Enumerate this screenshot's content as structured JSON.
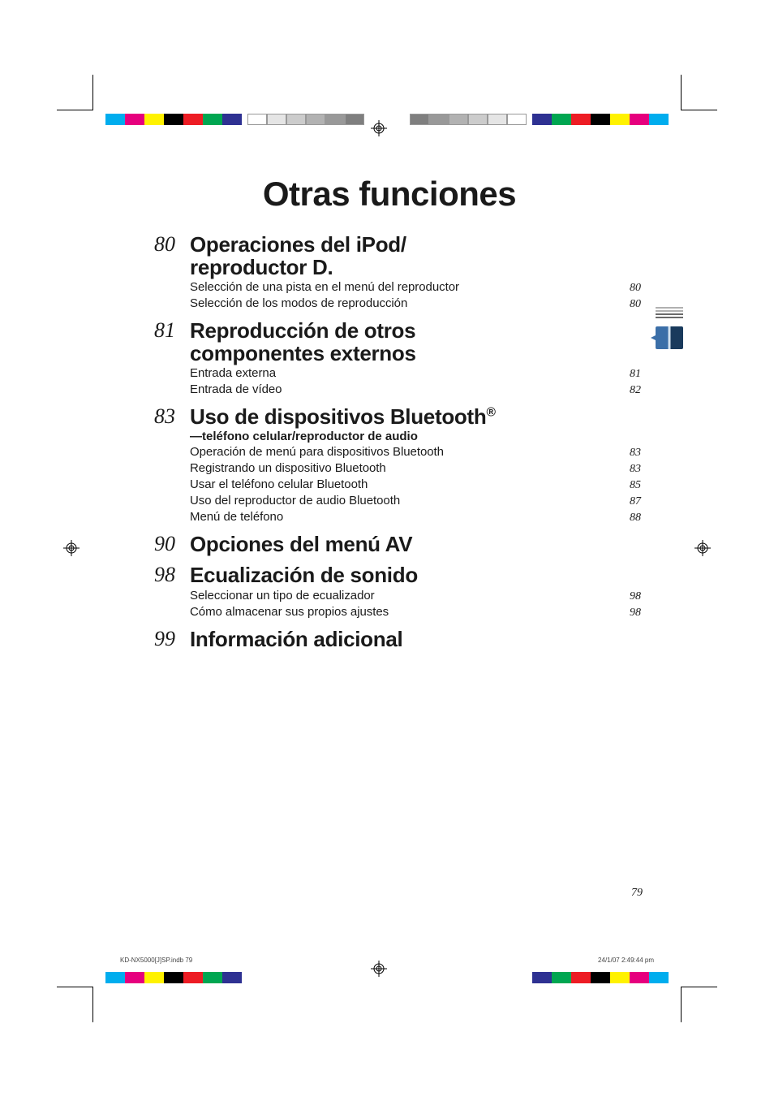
{
  "title": "Otras funciones",
  "sections": [
    {
      "num": "80",
      "title": "Operaciones del iPod/reproductor D.",
      "subtitle": null,
      "items": [
        {
          "label": "Selección de una pista en el menú del reproductor",
          "page": "80"
        },
        {
          "label": "Selección de los modos de reproducción",
          "page": "80"
        }
      ]
    },
    {
      "num": "81",
      "title": "Reproducción de otros componentes externos",
      "subtitle": null,
      "items": [
        {
          "label": "Entrada externa",
          "page": "81"
        },
        {
          "label": "Entrada de vídeo",
          "page": "82"
        }
      ]
    },
    {
      "num": "83",
      "title": "Uso de dispositivos Bluetooth",
      "title_sup": "®",
      "subtitle": "—teléfono celular/reproductor de audio",
      "items": [
        {
          "label": "Operación de menú para dispositivos Bluetooth",
          "page": "83"
        },
        {
          "label": "Registrando un dispositivo Bluetooth",
          "page": "83"
        },
        {
          "label": "Usar el teléfono celular Bluetooth",
          "page": "85"
        },
        {
          "label": "Uso del reproductor de audio Bluetooth",
          "page": "87"
        },
        {
          "label": "Menú de teléfono",
          "page": "88"
        }
      ]
    },
    {
      "num": "90",
      "title": "Opciones del menú AV",
      "subtitle": null,
      "items": []
    },
    {
      "num": "98",
      "title": "Ecualización de sonido",
      "subtitle": null,
      "items": [
        {
          "label": "Seleccionar un tipo de ecualizador",
          "page": "98"
        },
        {
          "label": "Cómo almacenar sus propios ajustes",
          "page": "98"
        }
      ]
    },
    {
      "num": "99",
      "title": "Información adicional",
      "subtitle": null,
      "items": []
    }
  ],
  "footer_page": "79",
  "imprint_left": "KD-NX5000[J]SP.indb   79",
  "imprint_right": "24/1/07   2:49:44 pm",
  "colorbar": [
    "#00adee",
    "#e6007e",
    "#fff200",
    "#000000",
    "#ed1c24",
    "#00a651",
    "#2e3192"
  ],
  "graybar": [
    "#ffffff",
    "#e5e5e5",
    "#cccccc",
    "#b2b2b2",
    "#999999",
    "#7f7f7f"
  ]
}
